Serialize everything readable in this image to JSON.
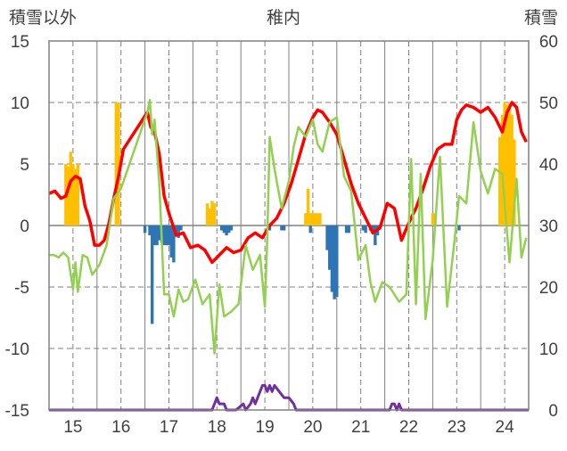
{
  "chart_data": {
    "type": "line",
    "title": "稚内",
    "ylabel_left": "積雪以外",
    "ylabel_right": "積雪",
    "ylim_left": [
      -15,
      15
    ],
    "ylim_right": [
      0,
      60
    ],
    "yticks_left": [
      "15",
      "10",
      "5",
      "0",
      "-5",
      "-10",
      "-15"
    ],
    "yticks_right": [
      "60",
      "50",
      "40",
      "30",
      "20",
      "10",
      "0"
    ],
    "xlim": [
      14.5,
      24.5
    ],
    "xticks": [
      "15",
      "16",
      "17",
      "18",
      "19",
      "20",
      "21",
      "22",
      "23",
      "24"
    ],
    "grid": true,
    "colors": {
      "red_line": "#ff0000",
      "green_line": "#92d050",
      "purple_line": "#7030a0",
      "orange_bars": "#ffc000",
      "blue_bars": "#2e75b6",
      "axis": "#808080"
    },
    "series": [
      {
        "color": "red",
        "axis": "left",
        "x": [
          14.5,
          14.62,
          14.75,
          14.85,
          14.95,
          15.05,
          15.15,
          15.25,
          15.35,
          15.45,
          15.55,
          15.65,
          15.75,
          15.85,
          15.95,
          16.05,
          16.55,
          16.62,
          16.7,
          16.8,
          16.9,
          17.0,
          17.15,
          17.3,
          17.45,
          17.6,
          17.75,
          17.9,
          18.05,
          18.2,
          18.35,
          18.5,
          18.65,
          18.8,
          18.95,
          19.1,
          19.25,
          19.4,
          19.55,
          19.7,
          19.85,
          20.0,
          20.1,
          20.2,
          20.35,
          20.5,
          20.65,
          20.8,
          20.95,
          21.1,
          21.25,
          21.4,
          21.55,
          21.7,
          21.85,
          22.0,
          22.15,
          22.3,
          22.45,
          22.6,
          22.75,
          22.9,
          23.0,
          23.1,
          23.2,
          23.35,
          23.5,
          23.65,
          23.8,
          23.95,
          24.05,
          24.15,
          24.25,
          24.35,
          24.45
        ],
        "values": [
          2.6,
          2.8,
          2.2,
          2.4,
          3.6,
          4.0,
          3.8,
          1.6,
          0.4,
          -1.6,
          -1.6,
          -1.2,
          0.2,
          2.2,
          4.0,
          6.2,
          9.2,
          8.0,
          7.6,
          5.8,
          2.4,
          1.0,
          -0.8,
          -0.6,
          -1.8,
          -1.6,
          -2.0,
          -3.0,
          -2.4,
          -1.8,
          -2.2,
          -2.0,
          -1.0,
          -0.6,
          -1.0,
          0.0,
          0.6,
          1.8,
          3.4,
          5.4,
          7.4,
          8.8,
          9.4,
          9.2,
          8.4,
          7.4,
          5.4,
          3.4,
          1.8,
          0.6,
          -0.6,
          -0.2,
          1.8,
          1.4,
          -1.2,
          0.2,
          1.4,
          3.0,
          4.8,
          6.2,
          6.6,
          6.6,
          8.6,
          9.4,
          9.8,
          9.6,
          9.2,
          9.6,
          8.8,
          7.6,
          9.2,
          10.0,
          9.6,
          7.6,
          6.8
        ]
      },
      {
        "color": "green",
        "axis": "left",
        "x": [
          14.5,
          14.6,
          14.7,
          14.8,
          14.9,
          15.0,
          15.05,
          15.1,
          15.2,
          15.3,
          15.4,
          15.55,
          15.7,
          15.85,
          16.0,
          16.55,
          16.6,
          16.65,
          16.7,
          16.8,
          16.9,
          17.0,
          17.1,
          17.2,
          17.3,
          17.4,
          17.55,
          17.7,
          17.85,
          17.95,
          18.05,
          18.15,
          18.3,
          18.45,
          18.6,
          18.75,
          18.9,
          19.0,
          19.05,
          19.1,
          19.2,
          19.35,
          19.5,
          19.6,
          19.7,
          19.85,
          20.0,
          20.1,
          20.2,
          20.35,
          20.5,
          20.65,
          20.8,
          20.95,
          21.1,
          21.2,
          21.3,
          21.45,
          21.6,
          21.8,
          21.95,
          22.05,
          22.15,
          22.25,
          22.35,
          22.5,
          22.65,
          22.8,
          22.95,
          23.05,
          23.2,
          23.35,
          23.5,
          23.65,
          23.8,
          23.95,
          24.1,
          24.25,
          24.35,
          24.45
        ],
        "values": [
          -2.4,
          -2.4,
          -2.6,
          -2.2,
          -2.6,
          -5.2,
          -3.0,
          -5.4,
          -2.4,
          -2.6,
          -4.0,
          -3.2,
          -1.6,
          2.2,
          3.0,
          9.2,
          10.2,
          7.4,
          8.6,
          3.4,
          -5.6,
          -5.6,
          -7.4,
          -5.2,
          -6.2,
          -6.0,
          -4.4,
          -6.4,
          -5.6,
          -10.4,
          -4.8,
          -7.4,
          -7.0,
          -6.4,
          -1.6,
          -3.6,
          -2.4,
          -6.6,
          -1.0,
          7.2,
          4.6,
          1.4,
          3.6,
          6.4,
          8.0,
          7.2,
          8.6,
          6.6,
          6.0,
          8.4,
          8.8,
          4.0,
          2.8,
          -2.8,
          -1.6,
          -4.6,
          -6.2,
          -4.6,
          -5.0,
          -6.2,
          -5.6,
          5.4,
          -6.4,
          4.2,
          -7.6,
          -2.8,
          5.6,
          -6.6,
          -1.4,
          2.4,
          1.8,
          8.4,
          4.4,
          2.6,
          4.6,
          4.2,
          -3.0,
          3.8,
          -2.6,
          -1.0
        ]
      },
      {
        "color": "purple",
        "axis": "right",
        "x": [
          14.5,
          17.5,
          17.6,
          17.7,
          17.8,
          17.9,
          17.95,
          18.0,
          18.05,
          18.15,
          18.2,
          18.3,
          18.4,
          18.55,
          18.6,
          18.7,
          18.75,
          18.8,
          18.85,
          18.9,
          18.95,
          19.0,
          19.05,
          19.1,
          19.15,
          19.2,
          19.3,
          19.4,
          19.5,
          19.6,
          19.65,
          21.6,
          21.65,
          21.7,
          21.75,
          21.8,
          21.85,
          24.5
        ],
        "values": [
          0,
          0,
          0,
          0,
          0,
          0,
          1,
          2,
          1,
          1,
          0,
          0,
          0,
          1,
          0,
          1,
          2,
          1,
          2,
          3,
          4,
          4,
          3,
          4,
          3,
          4,
          3,
          2,
          2,
          1,
          0,
          0,
          1,
          1,
          0,
          1,
          0,
          0
        ]
      }
    ],
    "bars_orange": {
      "axis": "left",
      "x": [
        14.85,
        14.9,
        14.95,
        15.0,
        15.05,
        15.1,
        15.9,
        15.95,
        17.8,
        17.85,
        17.9,
        17.95,
        19.85,
        19.9,
        19.95,
        20.0,
        20.05,
        20.1,
        20.15,
        22.5,
        22.55,
        23.9,
        23.95,
        24.0,
        24.05,
        24.1,
        24.15,
        24.2
      ],
      "values": [
        5.0,
        4.8,
        6.0,
        5.0,
        4.6,
        5.0,
        10.0,
        10.0,
        1.8,
        1.4,
        2.0,
        1.8,
        1.0,
        3.0,
        1.0,
        1.0,
        1.0,
        1.0,
        1.0,
        1.0,
        1.0,
        7.2,
        9.0,
        10.0,
        9.8,
        10.0,
        9.0,
        7.0
      ]
    },
    "bars_blue": {
      "axis": "left",
      "x": [
        16.5,
        16.6,
        16.65,
        16.7,
        16.75,
        16.8,
        16.85,
        16.9,
        16.95,
        17.0,
        17.05,
        17.1,
        17.15,
        17.2,
        17.25,
        18.1,
        18.15,
        18.2,
        18.25,
        18.3,
        19.1,
        19.35,
        19.4,
        19.95,
        20.3,
        20.35,
        20.4,
        20.45,
        20.5,
        20.7,
        20.75,
        21.05,
        21.1,
        21.2,
        21.25,
        21.3,
        21.35,
        23.05
      ],
      "values": [
        -0.6,
        -0.8,
        -8.0,
        -1.6,
        -1.6,
        -1.2,
        -1.4,
        -1.6,
        -1.6,
        -1.6,
        -2.6,
        -3.0,
        -0.6,
        -1.0,
        -0.4,
        -0.4,
        -0.6,
        -0.8,
        -0.6,
        -0.4,
        -0.4,
        -0.4,
        -0.4,
        -0.6,
        -2.0,
        -3.6,
        -5.4,
        -6.0,
        -5.8,
        -0.6,
        -0.6,
        -0.4,
        -0.6,
        -0.4,
        -0.6,
        -1.6,
        -0.8,
        -0.4
      ]
    }
  }
}
